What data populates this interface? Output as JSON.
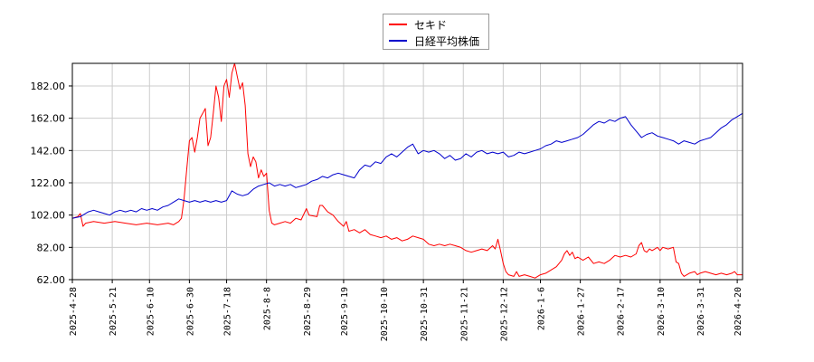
{
  "chart_data": {
    "type": "line",
    "x": [
      "2025-4-28",
      "2025-5-21",
      "2025-6-10",
      "2025-6-30",
      "2025-7-18",
      "2025-8-8",
      "2025-8-29",
      "2025-9-19",
      "2025-10-10",
      "2025-10-31",
      "2025-11-21",
      "2025-12-12",
      "2026-1-6",
      "2026-1-27",
      "2026-2-17",
      "2026-3-10",
      "2026-3-31",
      "2026-4-20"
    ],
    "xlabel": "",
    "ylabel": "",
    "ylim": [
      62,
      196
    ],
    "yticks": [
      62,
      82,
      102,
      122,
      142,
      162,
      182
    ],
    "ytick_labels": [
      "62.00",
      "82.00",
      "102.00",
      "122.00",
      "142.00",
      "162.00",
      "182.00"
    ],
    "grid": true,
    "legend_position": "top-center",
    "series": [
      {
        "name": "セキド",
        "color": "#ff0000",
        "points": [
          [
            0,
            100
          ],
          [
            2,
            101
          ],
          [
            3,
            103
          ],
          [
            4,
            95
          ],
          [
            5,
            97
          ],
          [
            8,
            98
          ],
          [
            12,
            97
          ],
          [
            16,
            98
          ],
          [
            20,
            97
          ],
          [
            24,
            96
          ],
          [
            28,
            97
          ],
          [
            32,
            96
          ],
          [
            36,
            97
          ],
          [
            38,
            96
          ],
          [
            40,
            98
          ],
          [
            41,
            100
          ],
          [
            42,
            112
          ],
          [
            43,
            130
          ],
          [
            44,
            148
          ],
          [
            45,
            150
          ],
          [
            46,
            141
          ],
          [
            47,
            150
          ],
          [
            48,
            162
          ],
          [
            49,
            165
          ],
          [
            50,
            168
          ],
          [
            51,
            145
          ],
          [
            52,
            150
          ],
          [
            53,
            165
          ],
          [
            54,
            182
          ],
          [
            55,
            175
          ],
          [
            56,
            160
          ],
          [
            57,
            182
          ],
          [
            58,
            186
          ],
          [
            59,
            175
          ],
          [
            60,
            190
          ],
          [
            61,
            196
          ],
          [
            62,
            188
          ],
          [
            63,
            180
          ],
          [
            64,
            184
          ],
          [
            65,
            170
          ],
          [
            66,
            140
          ],
          [
            67,
            132
          ],
          [
            68,
            138
          ],
          [
            69,
            135
          ],
          [
            70,
            125
          ],
          [
            71,
            130
          ],
          [
            72,
            126
          ],
          [
            73,
            128
          ],
          [
            74,
            105
          ],
          [
            75,
            97
          ],
          [
            76,
            96
          ],
          [
            78,
            97
          ],
          [
            80,
            98
          ],
          [
            82,
            97
          ],
          [
            84,
            100
          ],
          [
            86,
            99
          ],
          [
            88,
            106
          ],
          [
            89,
            102
          ],
          [
            92,
            101
          ],
          [
            93,
            108
          ],
          [
            94,
            108
          ],
          [
            96,
            104
          ],
          [
            98,
            102
          ],
          [
            100,
            98
          ],
          [
            102,
            95
          ],
          [
            103,
            98
          ],
          [
            104,
            92
          ],
          [
            106,
            93
          ],
          [
            108,
            91
          ],
          [
            110,
            93
          ],
          [
            112,
            90
          ],
          [
            114,
            89
          ],
          [
            116,
            88
          ],
          [
            118,
            89
          ],
          [
            120,
            87
          ],
          [
            122,
            88
          ],
          [
            124,
            86
          ],
          [
            126,
            87
          ],
          [
            128,
            89
          ],
          [
            130,
            88
          ],
          [
            132,
            87
          ],
          [
            134,
            84
          ],
          [
            136,
            83
          ],
          [
            138,
            84
          ],
          [
            140,
            83
          ],
          [
            142,
            84
          ],
          [
            144,
            83
          ],
          [
            146,
            82
          ],
          [
            148,
            80
          ],
          [
            150,
            79
          ],
          [
            152,
            80
          ],
          [
            154,
            81
          ],
          [
            156,
            80
          ],
          [
            158,
            83
          ],
          [
            159,
            81
          ],
          [
            160,
            87
          ],
          [
            161,
            80
          ],
          [
            162,
            72
          ],
          [
            163,
            67
          ],
          [
            164,
            65
          ],
          [
            166,
            64
          ],
          [
            167,
            67
          ],
          [
            168,
            64
          ],
          [
            170,
            65
          ],
          [
            172,
            64
          ],
          [
            174,
            63
          ],
          [
            176,
            65
          ],
          [
            178,
            66
          ],
          [
            180,
            68
          ],
          [
            182,
            70
          ],
          [
            184,
            74
          ],
          [
            185,
            78
          ],
          [
            186,
            80
          ],
          [
            187,
            77
          ],
          [
            188,
            79
          ],
          [
            189,
            75
          ],
          [
            190,
            76
          ],
          [
            192,
            74
          ],
          [
            194,
            76
          ],
          [
            196,
            72
          ],
          [
            198,
            73
          ],
          [
            200,
            72
          ],
          [
            202,
            74
          ],
          [
            204,
            77
          ],
          [
            206,
            76
          ],
          [
            208,
            77
          ],
          [
            210,
            76
          ],
          [
            212,
            78
          ],
          [
            213,
            83
          ],
          [
            214,
            85
          ],
          [
            215,
            80
          ],
          [
            216,
            79
          ],
          [
            217,
            81
          ],
          [
            218,
            80
          ],
          [
            220,
            82
          ],
          [
            221,
            80
          ],
          [
            222,
            82
          ],
          [
            224,
            81
          ],
          [
            226,
            82
          ],
          [
            227,
            73
          ],
          [
            228,
            72
          ],
          [
            229,
            66
          ],
          [
            230,
            64
          ],
          [
            232,
            66
          ],
          [
            234,
            67
          ],
          [
            235,
            65
          ],
          [
            236,
            66
          ],
          [
            238,
            67
          ],
          [
            240,
            66
          ],
          [
            242,
            65
          ],
          [
            244,
            66
          ],
          [
            246,
            65
          ],
          [
            248,
            66
          ],
          [
            249,
            67
          ],
          [
            250,
            65
          ],
          [
            252,
            65
          ]
        ]
      },
      {
        "name": "日経平均株価",
        "color": "#0000cc",
        "points": [
          [
            0,
            100
          ],
          [
            3,
            101
          ],
          [
            6,
            104
          ],
          [
            8,
            105
          ],
          [
            10,
            104
          ],
          [
            12,
            103
          ],
          [
            14,
            102
          ],
          [
            16,
            104
          ],
          [
            18,
            105
          ],
          [
            20,
            104
          ],
          [
            22,
            105
          ],
          [
            24,
            104
          ],
          [
            26,
            106
          ],
          [
            28,
            105
          ],
          [
            30,
            106
          ],
          [
            32,
            105
          ],
          [
            34,
            107
          ],
          [
            36,
            108
          ],
          [
            38,
            110
          ],
          [
            40,
            112
          ],
          [
            42,
            111
          ],
          [
            44,
            110
          ],
          [
            46,
            111
          ],
          [
            48,
            110
          ],
          [
            50,
            111
          ],
          [
            52,
            110
          ],
          [
            54,
            111
          ],
          [
            56,
            110
          ],
          [
            58,
            111
          ],
          [
            60,
            117
          ],
          [
            62,
            115
          ],
          [
            64,
            114
          ],
          [
            66,
            115
          ],
          [
            68,
            118
          ],
          [
            70,
            120
          ],
          [
            72,
            121
          ],
          [
            74,
            122
          ],
          [
            76,
            120
          ],
          [
            78,
            121
          ],
          [
            80,
            120
          ],
          [
            82,
            121
          ],
          [
            84,
            119
          ],
          [
            86,
            120
          ],
          [
            88,
            121
          ],
          [
            90,
            123
          ],
          [
            92,
            124
          ],
          [
            94,
            126
          ],
          [
            96,
            125
          ],
          [
            98,
            127
          ],
          [
            100,
            128
          ],
          [
            102,
            127
          ],
          [
            104,
            126
          ],
          [
            106,
            125
          ],
          [
            108,
            130
          ],
          [
            110,
            133
          ],
          [
            112,
            132
          ],
          [
            114,
            135
          ],
          [
            116,
            134
          ],
          [
            118,
            138
          ],
          [
            120,
            140
          ],
          [
            122,
            138
          ],
          [
            124,
            141
          ],
          [
            126,
            144
          ],
          [
            128,
            146
          ],
          [
            130,
            140
          ],
          [
            132,
            142
          ],
          [
            134,
            141
          ],
          [
            136,
            142
          ],
          [
            138,
            140
          ],
          [
            140,
            137
          ],
          [
            142,
            139
          ],
          [
            144,
            136
          ],
          [
            146,
            137
          ],
          [
            148,
            140
          ],
          [
            150,
            138
          ],
          [
            152,
            141
          ],
          [
            154,
            142
          ],
          [
            156,
            140
          ],
          [
            158,
            141
          ],
          [
            160,
            140
          ],
          [
            162,
            141
          ],
          [
            164,
            138
          ],
          [
            166,
            139
          ],
          [
            168,
            141
          ],
          [
            170,
            140
          ],
          [
            172,
            141
          ],
          [
            174,
            142
          ],
          [
            176,
            143
          ],
          [
            178,
            145
          ],
          [
            180,
            146
          ],
          [
            182,
            148
          ],
          [
            184,
            147
          ],
          [
            186,
            148
          ],
          [
            188,
            149
          ],
          [
            190,
            150
          ],
          [
            192,
            152
          ],
          [
            194,
            155
          ],
          [
            196,
            158
          ],
          [
            198,
            160
          ],
          [
            200,
            159
          ],
          [
            202,
            161
          ],
          [
            204,
            160
          ],
          [
            206,
            162
          ],
          [
            208,
            163
          ],
          [
            210,
            158
          ],
          [
            212,
            154
          ],
          [
            214,
            150
          ],
          [
            216,
            152
          ],
          [
            218,
            153
          ],
          [
            220,
            151
          ],
          [
            222,
            150
          ],
          [
            224,
            149
          ],
          [
            226,
            148
          ],
          [
            228,
            146
          ],
          [
            230,
            148
          ],
          [
            232,
            147
          ],
          [
            234,
            146
          ],
          [
            236,
            148
          ],
          [
            238,
            149
          ],
          [
            240,
            150
          ],
          [
            242,
            153
          ],
          [
            244,
            156
          ],
          [
            246,
            158
          ],
          [
            248,
            161
          ],
          [
            250,
            163
          ],
          [
            252,
            165
          ]
        ]
      }
    ]
  }
}
